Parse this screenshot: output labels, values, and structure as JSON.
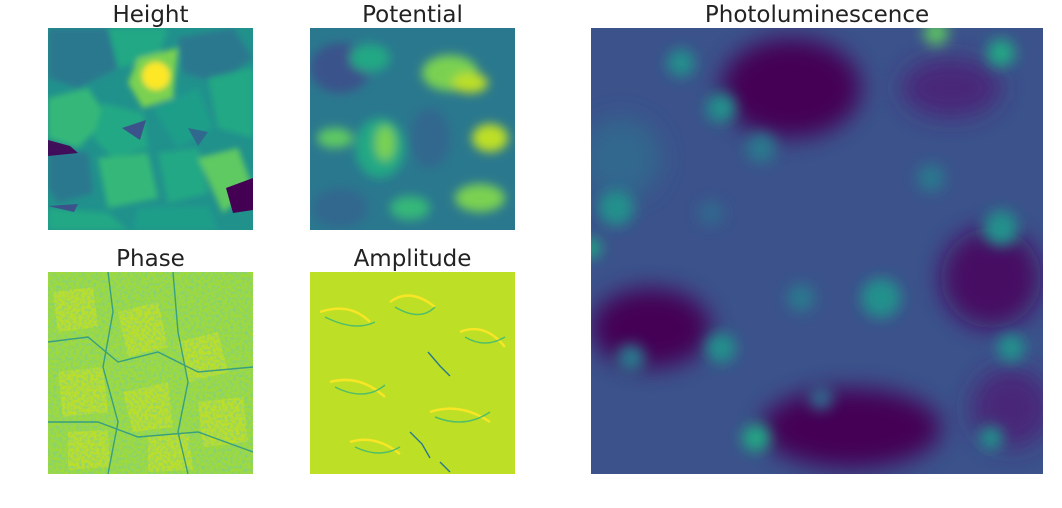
{
  "panels": [
    {
      "key": "height",
      "title": "Height"
    },
    {
      "key": "potential",
      "title": "Potential"
    },
    {
      "key": "phase",
      "title": "Phase"
    },
    {
      "key": "amplitude",
      "title": "Amplitude"
    },
    {
      "key": "pl",
      "title": "Photoluminescence"
    }
  ],
  "colormap": "viridis",
  "colors": {
    "dark": "#440154",
    "blue": "#3b528b",
    "teal": "#21918c",
    "green": "#5ec962",
    "yellow": "#fde725"
  }
}
